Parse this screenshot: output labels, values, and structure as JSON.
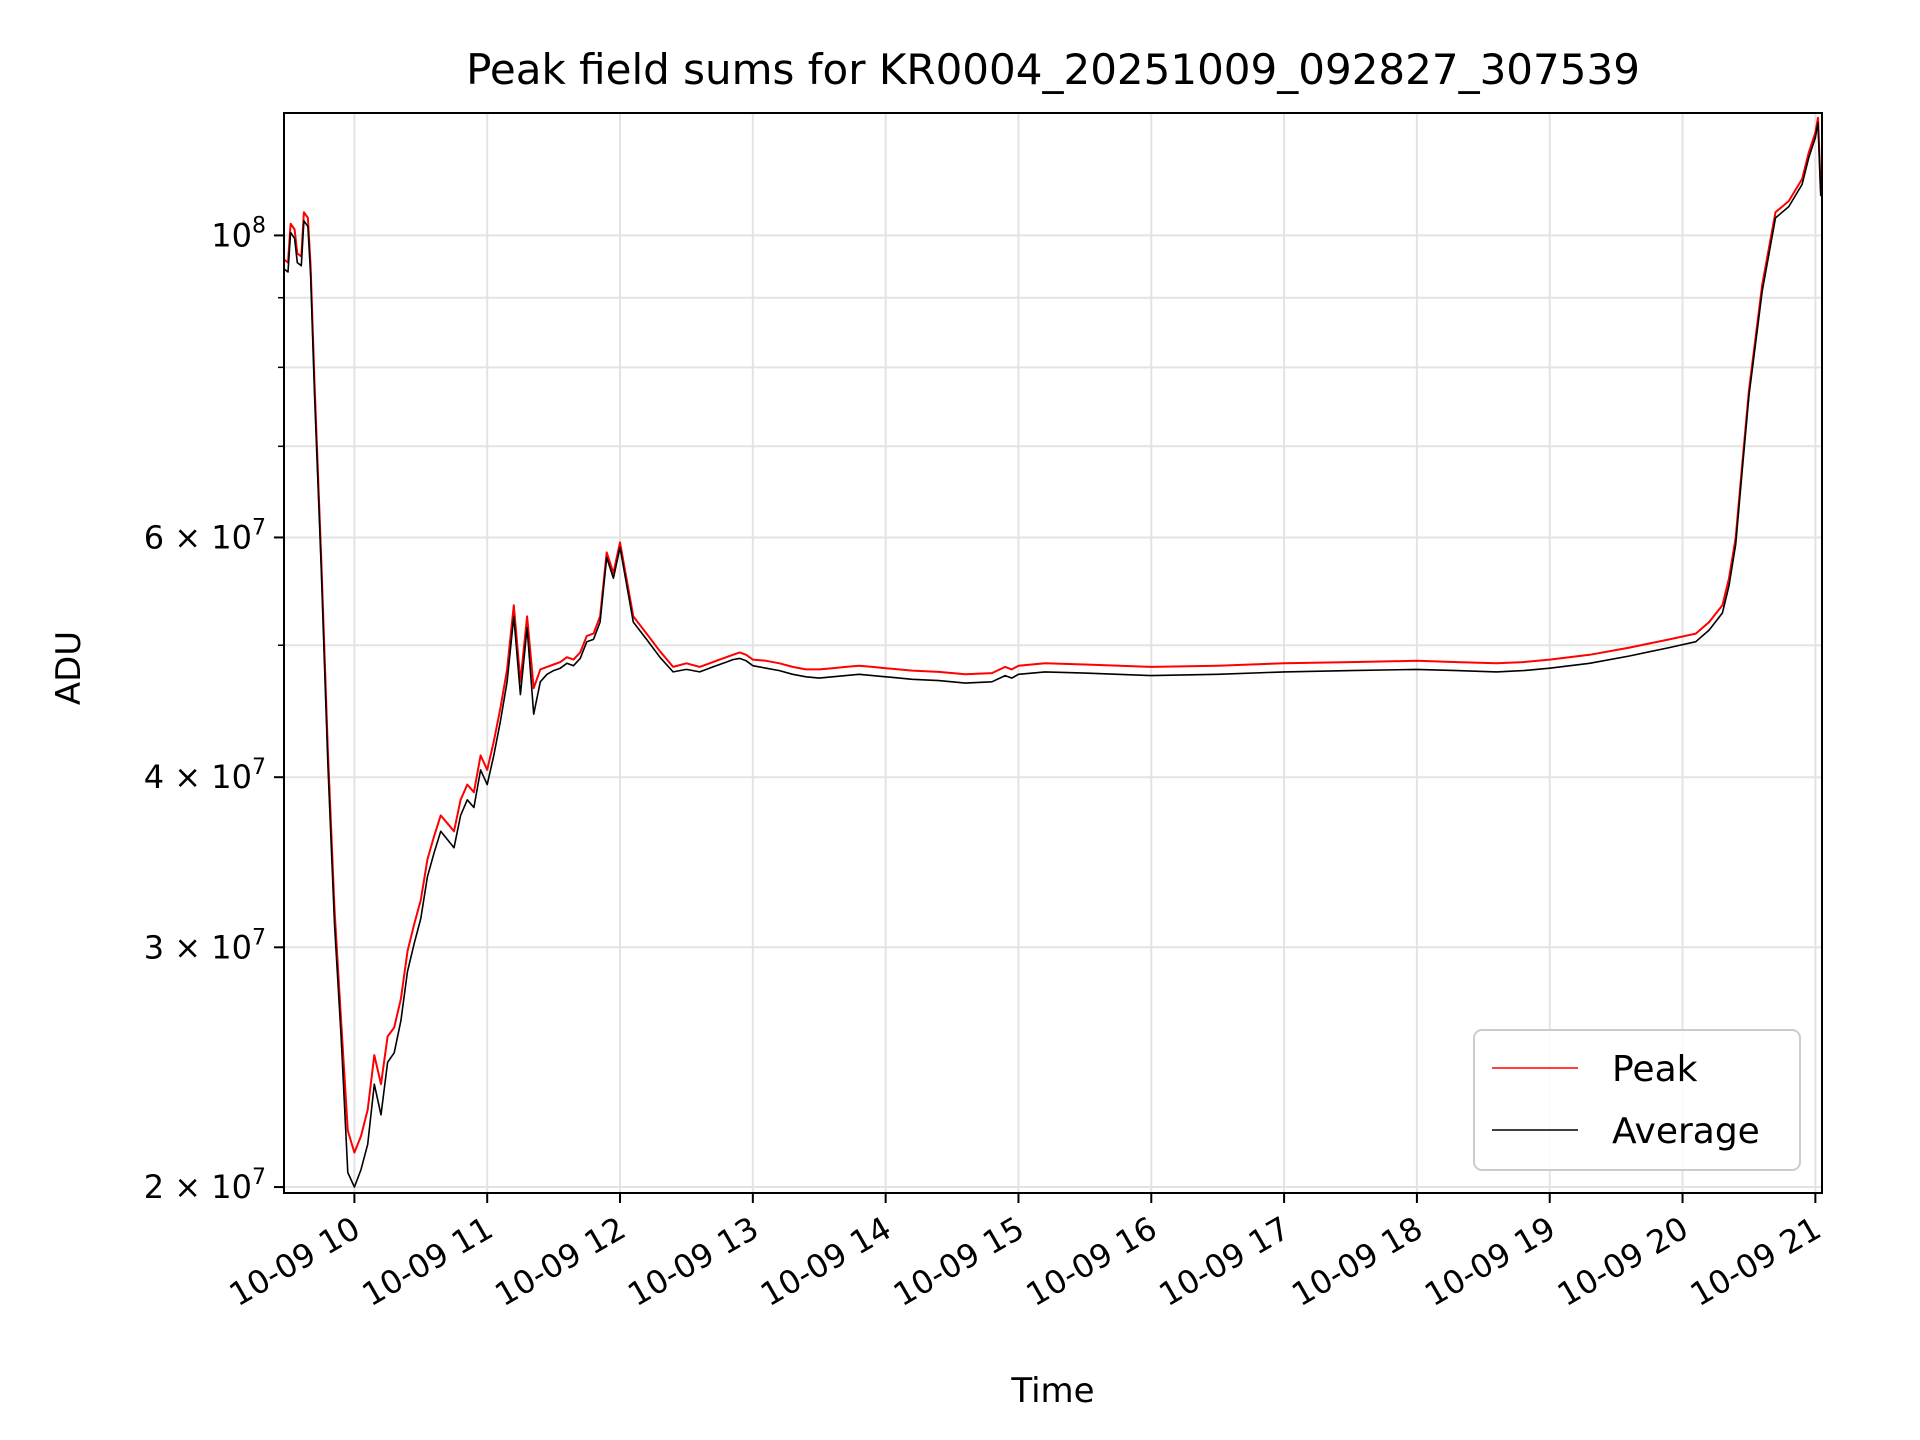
{
  "chart_data": {
    "type": "line",
    "title": "Peak field sums for KR0004_20251009_092827_307539",
    "xlabel": "Time",
    "ylabel": "ADU",
    "yscale": "log",
    "ylim": [
      19800000,
      123000000
    ],
    "xlim_hours": [
      9.47,
      21.05
    ],
    "x_ticks": [
      {
        "hour": 10,
        "label": "10-09 10"
      },
      {
        "hour": 11,
        "label": "10-09 11"
      },
      {
        "hour": 12,
        "label": "10-09 12"
      },
      {
        "hour": 13,
        "label": "10-09 13"
      },
      {
        "hour": 14,
        "label": "10-09 14"
      },
      {
        "hour": 15,
        "label": "10-09 15"
      },
      {
        "hour": 16,
        "label": "10-09 16"
      },
      {
        "hour": 17,
        "label": "10-09 17"
      },
      {
        "hour": 18,
        "label": "10-09 18"
      },
      {
        "hour": 19,
        "label": "10-09 19"
      },
      {
        "hour": 20,
        "label": "10-09 20"
      },
      {
        "hour": 21,
        "label": "10-09 21"
      }
    ],
    "y_ticks": [
      {
        "value": 20000000,
        "mant": "2",
        "exp": "7"
      },
      {
        "value": 30000000,
        "mant": "3",
        "exp": "7"
      },
      {
        "value": 40000000,
        "mant": "4",
        "exp": "7"
      },
      {
        "value": 60000000,
        "mant": "6",
        "exp": "7"
      },
      {
        "value": 100000000,
        "mant": "",
        "exp": "8"
      }
    ],
    "y_minor_ticks": [
      50000000,
      70000000,
      80000000,
      90000000
    ],
    "grid": true,
    "legend_position": "lower-right",
    "series": [
      {
        "name": "Peak",
        "color": "#ff0000",
        "x_hours": [
          9.47,
          9.5,
          9.52,
          9.55,
          9.57,
          9.6,
          9.62,
          9.65,
          9.67,
          9.7,
          9.75,
          9.8,
          9.85,
          9.9,
          9.95,
          10.0,
          10.05,
          10.1,
          10.15,
          10.2,
          10.25,
          10.3,
          10.35,
          10.4,
          10.45,
          10.5,
          10.55,
          10.6,
          10.65,
          10.7,
          10.75,
          10.8,
          10.85,
          10.9,
          10.95,
          11.0,
          11.05,
          11.1,
          11.15,
          11.2,
          11.25,
          11.3,
          11.35,
          11.4,
          11.45,
          11.5,
          11.55,
          11.6,
          11.65,
          11.7,
          11.75,
          11.8,
          11.85,
          11.9,
          11.95,
          12.0,
          12.1,
          12.2,
          12.3,
          12.4,
          12.5,
          12.6,
          12.7,
          12.75,
          12.8,
          12.85,
          12.9,
          12.95,
          13.0,
          13.1,
          13.2,
          13.3,
          13.4,
          13.5,
          13.6,
          13.7,
          13.8,
          13.9,
          14.0,
          14.2,
          14.4,
          14.6,
          14.8,
          14.9,
          14.95,
          15.0,
          15.2,
          15.5,
          16.0,
          16.5,
          17.0,
          17.5,
          18.0,
          18.3,
          18.6,
          18.8,
          19.0,
          19.3,
          19.6,
          19.9,
          20.1,
          20.2,
          20.3,
          20.35,
          20.4,
          20.45,
          20.5,
          20.6,
          20.7,
          20.75,
          20.8,
          20.9,
          20.95,
          21.0,
          21.02,
          21.04,
          21.05
        ],
        "values": [
          96000000,
          95500000,
          102000000,
          101000000,
          97000000,
          96500000,
          104000000,
          103000000,
          95000000,
          78000000,
          58000000,
          42000000,
          32000000,
          26500000,
          22000000,
          21200000,
          21800000,
          22800000,
          25000000,
          23800000,
          25800000,
          26200000,
          27500000,
          29800000,
          31200000,
          32500000,
          34800000,
          36200000,
          37500000,
          37000000,
          36500000,
          38500000,
          39500000,
          39000000,
          41500000,
          40500000,
          42500000,
          45000000,
          48000000,
          53500000,
          47000000,
          52500000,
          46500000,
          48000000,
          48200000,
          48400000,
          48600000,
          49000000,
          48800000,
          49400000,
          50800000,
          51000000,
          52500000,
          58500000,
          56500000,
          59500000,
          52500000,
          51000000,
          49500000,
          48200000,
          48500000,
          48200000,
          48600000,
          48800000,
          49000000,
          49200000,
          49400000,
          49200000,
          48800000,
          48700000,
          48500000,
          48200000,
          48000000,
          48000000,
          48100000,
          48200000,
          48300000,
          48200000,
          48100000,
          47900000,
          47800000,
          47600000,
          47700000,
          48200000,
          48000000,
          48300000,
          48500000,
          48400000,
          48200000,
          48300000,
          48500000,
          48600000,
          48700000,
          48600000,
          48500000,
          48600000,
          48800000,
          49200000,
          49800000,
          50500000,
          51000000,
          52000000,
          53500000,
          56000000,
          60000000,
          68000000,
          77000000,
          92000000,
          104000000,
          105000000,
          106000000,
          110000000,
          115000000,
          119000000,
          122000000,
          108000000,
          110000000
        ]
      },
      {
        "name": "Average",
        "color": "#000000",
        "x_hours": [
          9.47,
          9.5,
          9.52,
          9.55,
          9.57,
          9.6,
          9.62,
          9.65,
          9.67,
          9.7,
          9.75,
          9.8,
          9.85,
          9.9,
          9.95,
          10.0,
          10.05,
          10.1,
          10.15,
          10.2,
          10.25,
          10.3,
          10.35,
          10.4,
          10.45,
          10.5,
          10.55,
          10.6,
          10.65,
          10.7,
          10.75,
          10.8,
          10.85,
          10.9,
          10.95,
          11.0,
          11.05,
          11.1,
          11.15,
          11.2,
          11.25,
          11.3,
          11.35,
          11.4,
          11.45,
          11.5,
          11.55,
          11.6,
          11.65,
          11.7,
          11.75,
          11.8,
          11.85,
          11.9,
          11.95,
          12.0,
          12.1,
          12.2,
          12.3,
          12.4,
          12.5,
          12.6,
          12.7,
          12.75,
          12.8,
          12.85,
          12.9,
          12.95,
          13.0,
          13.1,
          13.2,
          13.3,
          13.4,
          13.5,
          13.6,
          13.7,
          13.8,
          13.9,
          14.0,
          14.2,
          14.4,
          14.6,
          14.8,
          14.9,
          14.95,
          15.0,
          15.2,
          15.5,
          16.0,
          16.5,
          17.0,
          17.5,
          18.0,
          18.3,
          18.6,
          18.8,
          19.0,
          19.3,
          19.6,
          19.9,
          20.1,
          20.2,
          20.3,
          20.35,
          20.4,
          20.45,
          20.5,
          20.6,
          20.7,
          20.75,
          20.8,
          20.9,
          20.95,
          21.0,
          21.02,
          21.04,
          21.05
        ],
        "values": [
          94500000,
          94000000,
          100500000,
          99500000,
          95500000,
          95000000,
          102500000,
          101500000,
          93500000,
          76500000,
          57000000,
          41000000,
          31200000,
          25800000,
          20500000,
          20000000,
          20600000,
          21500000,
          23800000,
          22600000,
          24700000,
          25100000,
          26500000,
          28800000,
          30200000,
          31500000,
          33800000,
          35200000,
          36500000,
          36000000,
          35500000,
          37500000,
          38500000,
          38000000,
          40500000,
          39500000,
          41500000,
          44000000,
          47000000,
          52500000,
          46000000,
          51500000,
          44500000,
          47000000,
          47600000,
          47900000,
          48100000,
          48500000,
          48300000,
          48900000,
          50300000,
          50500000,
          52000000,
          58000000,
          56000000,
          59000000,
          52000000,
          50500000,
          49000000,
          47800000,
          48000000,
          47800000,
          48200000,
          48400000,
          48600000,
          48800000,
          48900000,
          48700000,
          48300000,
          48100000,
          47900000,
          47600000,
          47400000,
          47300000,
          47400000,
          47500000,
          47600000,
          47500000,
          47400000,
          47200000,
          47100000,
          46900000,
          47000000,
          47500000,
          47300000,
          47600000,
          47800000,
          47700000,
          47500000,
          47600000,
          47800000,
          47900000,
          48000000,
          47900000,
          47800000,
          47900000,
          48100000,
          48500000,
          49100000,
          49800000,
          50300000,
          51300000,
          52800000,
          55300000,
          59300000,
          67300000,
          76300000,
          91000000,
          103000000,
          104000000,
          105000000,
          109000000,
          114000000,
          118000000,
          121000000,
          107000000,
          109000000
        ]
      }
    ]
  }
}
